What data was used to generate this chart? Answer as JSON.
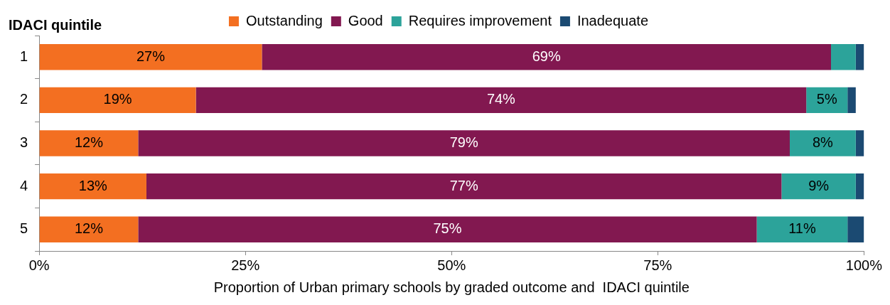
{
  "chart_data": {
    "type": "bar",
    "orientation": "horizontal",
    "stacked": true,
    "ylabel": "IDACI quintile",
    "xlabel": "Proportion of Urban primary schools by graded outcome and  IDACI quintile",
    "categories": [
      "1",
      "2",
      "3",
      "4",
      "5"
    ],
    "series": [
      {
        "name": "Outstanding",
        "color": "#f36f21",
        "values": [
          27,
          19,
          12,
          13,
          12
        ],
        "value_labels": [
          "27%",
          "19%",
          "12%",
          "13%",
          "12%"
        ]
      },
      {
        "name": "Good",
        "color": "#821850",
        "values": [
          69,
          74,
          79,
          77,
          75
        ],
        "value_labels": [
          "69%",
          "74%",
          "79%",
          "77%",
          "75%"
        ]
      },
      {
        "name": "Requires improvement",
        "color": "#2ca39a",
        "values": [
          3,
          5,
          8,
          9,
          11
        ],
        "value_labels": [
          null,
          "5%",
          "8%",
          "9%",
          "11%"
        ]
      },
      {
        "name": "Inadequate",
        "color": "#1b4a72",
        "values": [
          1,
          1,
          1,
          1,
          2
        ]
      }
    ],
    "xlim": [
      0,
      100
    ],
    "xticks": [
      {
        "value": 0,
        "label": "0%"
      },
      {
        "value": 25,
        "label": "25%"
      },
      {
        "value": 50,
        "label": "50%"
      },
      {
        "value": 75,
        "label": "75%"
      },
      {
        "value": 100,
        "label": "100%"
      }
    ],
    "grid": false,
    "legend": "top"
  }
}
